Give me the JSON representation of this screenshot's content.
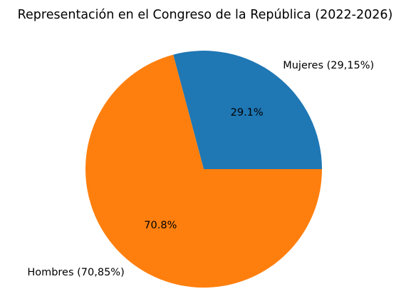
{
  "chart_data": {
    "type": "pie",
    "title": "Representación en el Congreso de la República (2022-2026)",
    "slices": [
      {
        "label": "Mujeres (29,15%)",
        "value": 29.15,
        "pct_text": "29.1%",
        "color": "#1f77b4"
      },
      {
        "label": "Hombres (70,85%)",
        "value": 70.85,
        "pct_text": "70.8%",
        "color": "#ff7f0e"
      }
    ],
    "legend": "none"
  }
}
